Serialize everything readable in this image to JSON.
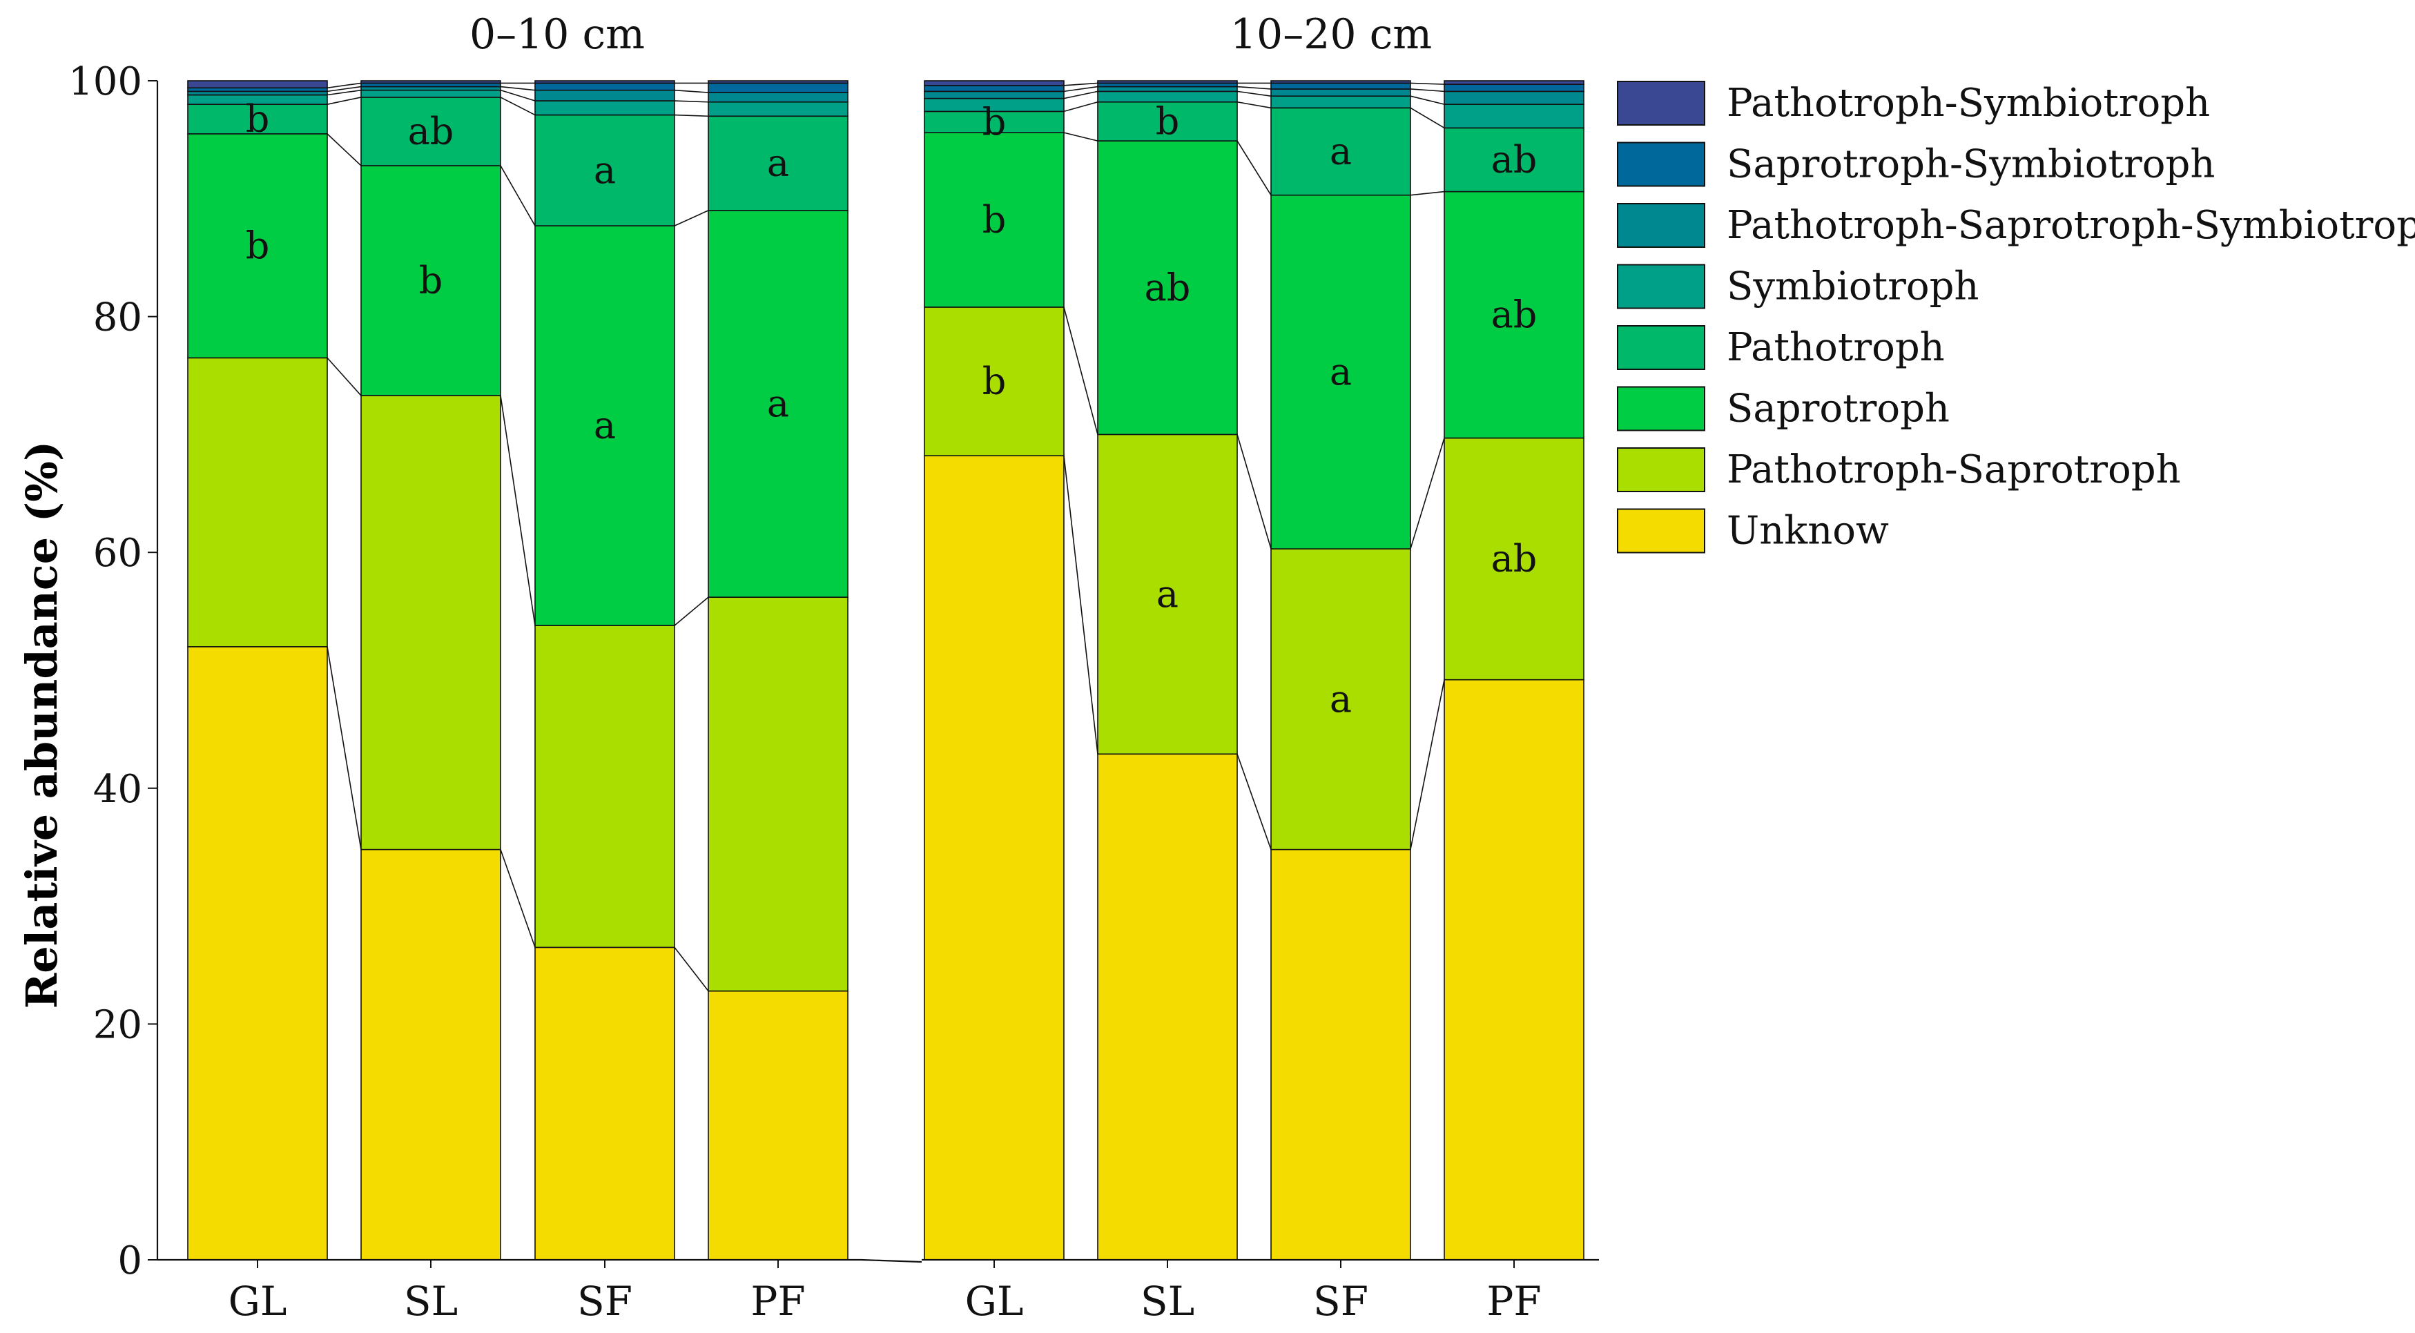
{
  "chart_data": {
    "type": "stacked-bar",
    "ylabel": "Relative abundance (%)",
    "ylim": [
      0,
      100
    ],
    "yticks": [
      0,
      20,
      40,
      60,
      80,
      100
    ],
    "legend_position": "right",
    "categories": [
      "GL",
      "SL",
      "SF",
      "PF"
    ],
    "series": [
      {
        "name": "Unknow",
        "color": "#F5DC00"
      },
      {
        "name": "Pathotroph-Saprotroph",
        "color": "#A9DE00"
      },
      {
        "name": "Saprotroph",
        "color": "#00CC44"
      },
      {
        "name": "Pathotroph",
        "color": "#00B86A"
      },
      {
        "name": "Symbiotroph",
        "color": "#009F87"
      },
      {
        "name": "Pathotroph-Saprotroph-Symbiotroph",
        "color": "#008890"
      },
      {
        "name": "Saprotroph-Symbiotroph",
        "color": "#00689A"
      },
      {
        "name": "Pathotroph-Symbiotroph",
        "color": "#3A4894"
      }
    ],
    "legend_order": [
      "Pathotroph-Symbiotroph",
      "Saprotroph-Symbiotroph",
      "Pathotroph-Saprotroph-Symbiotroph",
      "Symbiotroph",
      "Pathotroph",
      "Saprotroph",
      "Pathotroph-Saprotroph",
      "Unknow"
    ],
    "panels": [
      {
        "title": "0–10 cm",
        "bars": [
          {
            "category": "GL",
            "values": [
              52.0,
              24.5,
              19.0,
              2.5,
              0.8,
              0.3,
              0.3,
              0.6
            ],
            "annotations": [
              {
                "series": "Saprotroph",
                "label": "b"
              },
              {
                "series": "Pathotroph",
                "label": "b"
              }
            ]
          },
          {
            "category": "SL",
            "values": [
              34.8,
              38.5,
              19.5,
              5.8,
              0.6,
              0.3,
              0.3,
              0.2
            ],
            "annotations": [
              {
                "series": "Saprotroph",
                "label": "b"
              },
              {
                "series": "Pathotroph",
                "label": "ab"
              }
            ]
          },
          {
            "category": "SF",
            "values": [
              26.5,
              27.3,
              33.9,
              9.4,
              1.2,
              0.9,
              0.6,
              0.2
            ],
            "annotations": [
              {
                "series": "Saprotroph",
                "label": "a"
              },
              {
                "series": "Pathotroph",
                "label": "a"
              }
            ]
          },
          {
            "category": "PF",
            "values": [
              22.8,
              33.4,
              32.8,
              8.0,
              1.2,
              0.8,
              0.8,
              0.2
            ],
            "annotations": [
              {
                "series": "Saprotroph",
                "label": "a"
              },
              {
                "series": "Pathotroph",
                "label": "a"
              }
            ]
          }
        ]
      },
      {
        "title": "10–20 cm",
        "bars": [
          {
            "category": "GL",
            "values": [
              68.2,
              12.6,
              14.8,
              1.8,
              1.1,
              0.6,
              0.5,
              0.4
            ],
            "annotations": [
              {
                "series": "Pathotroph-Saprotroph",
                "label": "b"
              },
              {
                "series": "Saprotroph",
                "label": "b"
              },
              {
                "series": "Pathotroph",
                "label": "b"
              }
            ]
          },
          {
            "category": "SL",
            "values": [
              42.9,
              27.1,
              24.9,
              3.3,
              0.9,
              0.4,
              0.3,
              0.2
            ],
            "annotations": [
              {
                "series": "Pathotroph-Saprotroph",
                "label": "a"
              },
              {
                "series": "Saprotroph",
                "label": "ab"
              },
              {
                "series": "Pathotroph",
                "label": "b"
              }
            ]
          },
          {
            "category": "SF",
            "values": [
              34.8,
              25.5,
              30.0,
              7.4,
              1.0,
              0.6,
              0.5,
              0.2
            ],
            "annotations": [
              {
                "series": "Pathotroph-Saprotroph",
                "label": "a"
              },
              {
                "series": "Saprotroph",
                "label": "a"
              },
              {
                "series": "Pathotroph",
                "label": "a"
              }
            ]
          },
          {
            "category": "PF",
            "values": [
              49.2,
              20.5,
              20.9,
              5.4,
              2.0,
              1.1,
              0.6,
              0.3
            ],
            "annotations": [
              {
                "series": "Pathotroph-Saprotroph",
                "label": "ab"
              },
              {
                "series": "Saprotroph",
                "label": "ab"
              },
              {
                "series": "Pathotroph",
                "label": "ab"
              }
            ]
          }
        ]
      }
    ]
  }
}
